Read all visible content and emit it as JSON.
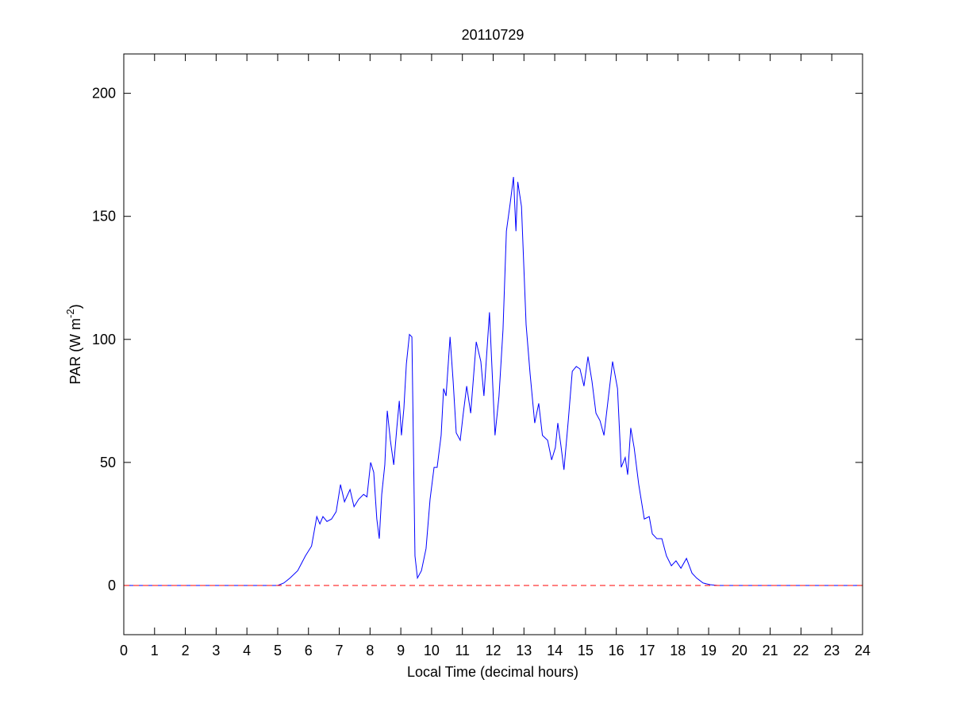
{
  "chart_data": {
    "type": "line",
    "title": "20110729",
    "xlabel": "Local Time (decimal hours)",
    "ylabel_parts": [
      "PAR (W m",
      "-2",
      ")"
    ],
    "xlim": [
      0,
      24
    ],
    "ylim": [
      -20,
      216
    ],
    "xticks": [
      0,
      1,
      2,
      3,
      4,
      5,
      6,
      7,
      8,
      9,
      10,
      11,
      12,
      13,
      14,
      15,
      16,
      17,
      18,
      19,
      20,
      21,
      22,
      23,
      24
    ],
    "yticks": [
      0,
      50,
      100,
      150,
      200
    ],
    "hline": {
      "value": 0,
      "color": "#ff0000",
      "style": "dashed"
    },
    "series": [
      {
        "color": "#0000ff",
        "x": [
          0,
          5.0,
          5.2,
          5.4,
          5.65,
          5.9,
          6.1,
          6.2,
          6.27,
          6.37,
          6.47,
          6.6,
          6.75,
          6.9,
          7.04,
          7.17,
          7.35,
          7.48,
          7.63,
          7.79,
          7.9,
          8.02,
          8.12,
          8.22,
          8.3,
          8.38,
          8.48,
          8.56,
          8.66,
          8.77,
          8.87,
          8.95,
          9.02,
          9.1,
          9.18,
          9.28,
          9.36,
          9.46,
          9.54,
          9.67,
          9.82,
          9.95,
          10.08,
          10.18,
          10.31,
          10.39,
          10.47,
          10.6,
          10.7,
          10.8,
          10.93,
          11.03,
          11.14,
          11.27,
          11.45,
          11.6,
          11.7,
          11.88,
          12.06,
          12.19,
          12.32,
          12.43,
          12.55,
          12.66,
          12.74,
          12.8,
          12.92,
          13.07,
          13.2,
          13.35,
          13.48,
          13.6,
          13.77,
          13.9,
          14.02,
          14.1,
          14.2,
          14.3,
          14.44,
          14.57,
          14.7,
          14.82,
          14.95,
          15.08,
          15.21,
          15.34,
          15.47,
          15.6,
          15.73,
          15.88,
          16.04,
          16.16,
          16.29,
          16.37,
          16.47,
          16.58,
          16.73,
          16.91,
          17.07,
          17.17,
          17.32,
          17.48,
          17.63,
          17.79,
          17.94,
          18.1,
          18.28,
          18.46,
          18.61,
          18.82,
          19.05,
          19.3,
          24
        ],
        "values": [
          0,
          0,
          1,
          3,
          6,
          12,
          16,
          23,
          28,
          25,
          28,
          26,
          27,
          30,
          41,
          34,
          39,
          32,
          35,
          37,
          36,
          50,
          46,
          27,
          19,
          37,
          49,
          71,
          59,
          49,
          64,
          75,
          61,
          72,
          90,
          102,
          101,
          12,
          3,
          6,
          15,
          35,
          48,
          48,
          61,
          80,
          77,
          101,
          83,
          62,
          59,
          70,
          81,
          70,
          99,
          91,
          77,
          111,
          61,
          77,
          104,
          144,
          155,
          166,
          144,
          164,
          154,
          106,
          86,
          66,
          74,
          61,
          59,
          51,
          56,
          66,
          57,
          47,
          67,
          87,
          89,
          88,
          81,
          93,
          83,
          70,
          67,
          61,
          75,
          91,
          80,
          48,
          52,
          45,
          64,
          56,
          41,
          27,
          28,
          21,
          19,
          19,
          12,
          8,
          10,
          7,
          11,
          5,
          3,
          1,
          0.3,
          0,
          0
        ]
      }
    ]
  }
}
